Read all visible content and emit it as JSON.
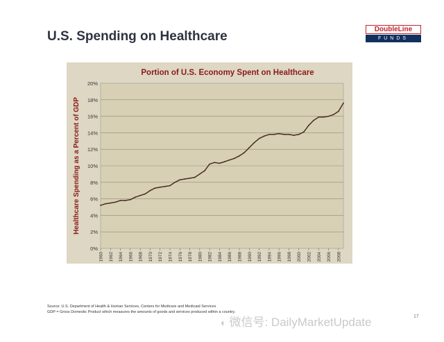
{
  "slide": {
    "title": "U.S. Spending on Healthcare",
    "page_number": "17"
  },
  "logo": {
    "brand": "DoubleLine",
    "sub": "FUNDS"
  },
  "source": {
    "line1": "Source:  U.S. Department of Health & Human Services, Centers for Medicare and Medicaid Services",
    "line2": "GDP = Gross Domestic Product which measures the amounts of goods and services produced within a country."
  },
  "watermark": {
    "text": "微信号: DailyMarketUpdate"
  },
  "colors": {
    "panel_bg": "#ddd7c3",
    "plot_bg": "#d8d0b4",
    "line": "#4a2d22",
    "title_text": "#8b1a1a",
    "logo_red": "#c0242b",
    "logo_navy": "#12305e"
  },
  "chart_data": {
    "type": "line",
    "title": "Portion of U.S. Economy Spent on Healthcare",
    "xlabel": "",
    "ylabel": "Healthcare  Spending as a Percent of GDP",
    "x": [
      1960,
      1961,
      1962,
      1963,
      1964,
      1965,
      1966,
      1967,
      1968,
      1969,
      1970,
      1971,
      1972,
      1973,
      1974,
      1975,
      1976,
      1977,
      1978,
      1979,
      1980,
      1981,
      1982,
      1983,
      1984,
      1985,
      1986,
      1987,
      1988,
      1989,
      1990,
      1991,
      1992,
      1993,
      1994,
      1995,
      1996,
      1997,
      1998,
      1999,
      2000,
      2001,
      2002,
      2003,
      2004,
      2005,
      2006,
      2007,
      2008,
      2009
    ],
    "series": [
      {
        "name": "Healthcare spending % of GDP",
        "values": [
          5.2,
          5.4,
          5.5,
          5.6,
          5.8,
          5.8,
          5.9,
          6.2,
          6.4,
          6.6,
          7.0,
          7.3,
          7.4,
          7.5,
          7.6,
          8.0,
          8.3,
          8.4,
          8.5,
          8.6,
          9.0,
          9.4,
          10.2,
          10.4,
          10.3,
          10.5,
          10.7,
          10.9,
          11.2,
          11.6,
          12.2,
          12.8,
          13.3,
          13.6,
          13.8,
          13.8,
          13.9,
          13.8,
          13.8,
          13.7,
          13.8,
          14.1,
          14.9,
          15.5,
          15.9,
          15.9,
          16.0,
          16.2,
          16.6,
          17.6
        ]
      }
    ],
    "x_ticks": [
      "1960",
      "1962",
      "1964",
      "1966",
      "1968",
      "1970",
      "1972",
      "1974",
      "1976",
      "1978",
      "1980",
      "1982",
      "1984",
      "1986",
      "1988",
      "1990",
      "1992",
      "1994",
      "1996",
      "1998",
      "2000",
      "2002",
      "2004",
      "2006",
      "2008"
    ],
    "y_ticks": [
      "0%",
      "2%",
      "4%",
      "6%",
      "8%",
      "10%",
      "12%",
      "14%",
      "16%",
      "18%",
      "20%"
    ],
    "ylim": [
      0,
      20
    ],
    "xlim": [
      1960,
      2009
    ],
    "grid": true,
    "legend": "none"
  }
}
